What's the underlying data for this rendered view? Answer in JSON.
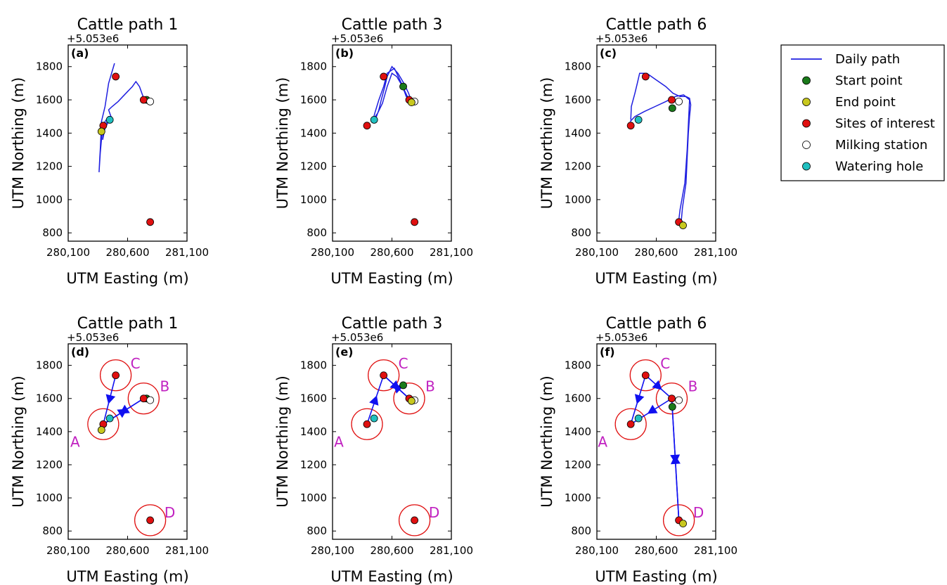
{
  "colors": {
    "path": "#1f1fe0",
    "start": "#1a7a1a",
    "end": "#c8c81e",
    "site": "#e01010",
    "milking": "#ffffff",
    "water": "#20c0c0",
    "circle": "#e01010",
    "arrow": "#1010f0",
    "site_label": "#c020c0"
  },
  "legend": {
    "placement": "upper right, outside panels",
    "entries": [
      {
        "key": "path",
        "label": "Daily path"
      },
      {
        "key": "start",
        "label": "Start point"
      },
      {
        "key": "end",
        "label": "End point"
      },
      {
        "key": "site",
        "label": "Sites of interest"
      },
      {
        "key": "milking",
        "label": "Milking station"
      },
      {
        "key": "water",
        "label": "Watering hole"
      }
    ]
  },
  "chart_data": [
    {
      "type": "line",
      "panel": "a",
      "title": "Cattle path 1",
      "offset_label": "+5.053e6",
      "xlabel": "UTM Easting (m)",
      "ylabel": "UTM Northing (m)",
      "xlim": [
        280100,
        281100
      ],
      "ylim": [
        750,
        1930
      ],
      "xticks": [
        280100,
        280600,
        281100
      ],
      "xtick_labels": [
        "280,100",
        "280,600",
        "281,100"
      ],
      "yticks": [
        800,
        1000,
        1200,
        1400,
        1600,
        1800
      ],
      "ytick_labels": [
        "800",
        "1000",
        "1200",
        "1400",
        "1600",
        "1800"
      ],
      "path": [
        [
          280490,
          1820
        ],
        [
          280440,
          1700
        ],
        [
          280410,
          1560
        ],
        [
          280380,
          1470
        ],
        [
          280375,
          1380
        ],
        [
          280370,
          1300
        ],
        [
          280365,
          1240
        ],
        [
          280360,
          1165
        ],
        [
          280370,
          1280
        ],
        [
          280385,
          1400
        ],
        [
          280395,
          1440
        ],
        [
          280410,
          1470
        ],
        [
          280440,
          1500
        ],
        [
          280460,
          1500
        ],
        [
          280440,
          1470
        ],
        [
          280410,
          1430
        ],
        [
          280390,
          1360
        ],
        [
          280400,
          1420
        ],
        [
          280420,
          1460
        ],
        [
          280460,
          1500
        ],
        [
          280440,
          1540
        ],
        [
          280470,
          1560
        ],
        [
          280520,
          1590
        ],
        [
          280560,
          1620
        ],
        [
          280600,
          1650
        ],
        [
          280640,
          1680
        ],
        [
          280670,
          1710
        ],
        [
          280700,
          1680
        ],
        [
          280720,
          1640
        ],
        [
          280740,
          1600
        ],
        [
          280760,
          1590
        ]
      ],
      "start": [
        280760,
        1600
      ],
      "end": [
        280380,
        1410
      ],
      "sites": [
        [
          280500,
          1740
        ],
        [
          280735,
          1600
        ],
        [
          280395,
          1445
        ],
        [
          280790,
          865
        ]
      ],
      "milking": [
        280790,
        1590
      ],
      "water": [
        280450,
        1480
      ]
    },
    {
      "type": "line",
      "panel": "b",
      "title": "Cattle path 3",
      "offset_label": "+5.053e6",
      "xlabel": "UTM Easting (m)",
      "ylabel": "UTM Northing (m)",
      "xlim": [
        280100,
        281100
      ],
      "ylim": [
        750,
        1930
      ],
      "xticks": [
        280100,
        280600,
        281100
      ],
      "xtick_labels": [
        "280,100",
        "280,600",
        "281,100"
      ],
      "yticks": [
        800,
        1000,
        1200,
        1400,
        1600,
        1800
      ],
      "ytick_labels": [
        "800",
        "1000",
        "1200",
        "1400",
        "1600",
        "1800"
      ],
      "path": [
        [
          280460,
          1480
        ],
        [
          280490,
          1540
        ],
        [
          280510,
          1600
        ],
        [
          280540,
          1680
        ],
        [
          280560,
          1740
        ],
        [
          280600,
          1800
        ],
        [
          280650,
          1760
        ],
        [
          280700,
          1700
        ],
        [
          280740,
          1640
        ],
        [
          280760,
          1600
        ],
        [
          280720,
          1620
        ],
        [
          280680,
          1700
        ],
        [
          280620,
          1790
        ],
        [
          280560,
          1760
        ],
        [
          280530,
          1680
        ],
        [
          280490,
          1600
        ],
        [
          280460,
          1530
        ],
        [
          280440,
          1480
        ],
        [
          280480,
          1520
        ],
        [
          280520,
          1580
        ],
        [
          280560,
          1680
        ],
        [
          280600,
          1760
        ],
        [
          280640,
          1740
        ],
        [
          280690,
          1680
        ],
        [
          280730,
          1620
        ]
      ],
      "start": [
        280695,
        1680
      ],
      "end": [
        280765,
        1585
      ],
      "sites": [
        [
          280530,
          1740
        ],
        [
          280745,
          1600
        ],
        [
          280390,
          1445
        ],
        [
          280790,
          865
        ]
      ],
      "milking": [
        280790,
        1590
      ],
      "water": [
        280450,
        1480
      ]
    },
    {
      "type": "line",
      "panel": "c",
      "title": "Cattle path 6",
      "offset_label": "+5.053e6",
      "xlabel": "UTM Easting (m)",
      "ylabel": "UTM Northing (m)",
      "xlim": [
        280100,
        281100
      ],
      "ylim": [
        750,
        1930
      ],
      "xticks": [
        280100,
        280600,
        281100
      ],
      "xtick_labels": [
        "280,100",
        "280,600",
        "281,100"
      ],
      "yticks": [
        800,
        1000,
        1200,
        1400,
        1600,
        1800
      ],
      "ytick_labels": [
        "800",
        "1000",
        "1200",
        "1400",
        "1600",
        "1800"
      ],
      "path": [
        [
          280385,
          1480
        ],
        [
          280390,
          1560
        ],
        [
          280420,
          1640
        ],
        [
          280440,
          1700
        ],
        [
          280460,
          1760
        ],
        [
          280520,
          1760
        ],
        [
          280600,
          1720
        ],
        [
          280680,
          1680
        ],
        [
          280740,
          1640
        ],
        [
          280800,
          1620
        ],
        [
          280850,
          1620
        ],
        [
          280880,
          1610
        ],
        [
          280890,
          1570
        ],
        [
          280880,
          1500
        ],
        [
          280870,
          1400
        ],
        [
          280860,
          1250
        ],
        [
          280850,
          1100
        ],
        [
          280820,
          950
        ],
        [
          280810,
          870
        ],
        [
          280790,
          880
        ],
        [
          280800,
          940
        ],
        [
          280840,
          1100
        ],
        [
          280860,
          1300
        ],
        [
          280870,
          1450
        ],
        [
          280880,
          1600
        ],
        [
          280830,
          1630
        ],
        [
          280760,
          1620
        ],
        [
          280680,
          1590
        ],
        [
          280590,
          1560
        ],
        [
          280500,
          1530
        ],
        [
          280420,
          1500
        ],
        [
          280380,
          1470
        ]
      ],
      "start": [
        280735,
        1550
      ],
      "end": [
        280825,
        845
      ],
      "sites": [
        [
          280510,
          1740
        ],
        [
          280730,
          1600
        ],
        [
          280385,
          1445
        ],
        [
          280790,
          865
        ]
      ],
      "milking": [
        280790,
        1590
      ],
      "water": [
        280450,
        1480
      ]
    },
    {
      "type": "scatter",
      "panel": "d",
      "title": "Cattle path 1",
      "offset_label": "+5.053e6",
      "xlabel": "UTM Easting (m)",
      "ylabel": "UTM Northing (m)",
      "xlim": [
        280100,
        281100
      ],
      "ylim": [
        750,
        1930
      ],
      "xticks": [
        280100,
        280600,
        281100
      ],
      "xtick_labels": [
        "280,100",
        "280,600",
        "281,100"
      ],
      "yticks": [
        800,
        1000,
        1200,
        1400,
        1600,
        1800
      ],
      "ytick_labels": [
        "800",
        "1000",
        "1200",
        "1400",
        "1600",
        "1800"
      ],
      "start": [
        280760,
        1600
      ],
      "end": [
        280380,
        1410
      ],
      "sites": [
        [
          280500,
          1740
        ],
        [
          280735,
          1600
        ],
        [
          280395,
          1445
        ],
        [
          280790,
          865
        ]
      ],
      "milking": [
        280790,
        1590
      ],
      "water": [
        280450,
        1480
      ],
      "site_labels": [
        "C",
        "B",
        "A",
        "D"
      ],
      "transitions": [
        [
          1,
          2
        ],
        [
          0,
          2
        ],
        [
          2,
          1
        ]
      ]
    },
    {
      "type": "scatter",
      "panel": "e",
      "title": "Cattle path 3",
      "offset_label": "+5.053e6",
      "xlabel": "UTM Easting (m)",
      "ylabel": "UTM Northing (m)",
      "xlim": [
        280100,
        281100
      ],
      "ylim": [
        750,
        1930
      ],
      "xticks": [
        280100,
        280600,
        281100
      ],
      "xtick_labels": [
        "280,100",
        "280,600",
        "281,100"
      ],
      "yticks": [
        800,
        1000,
        1200,
        1400,
        1600,
        1800
      ],
      "ytick_labels": [
        "800",
        "1000",
        "1200",
        "1400",
        "1600",
        "1800"
      ],
      "start": [
        280695,
        1680
      ],
      "end": [
        280765,
        1585
      ],
      "sites": [
        [
          280530,
          1740
        ],
        [
          280745,
          1600
        ],
        [
          280390,
          1445
        ],
        [
          280790,
          865
        ]
      ],
      "milking": [
        280790,
        1590
      ],
      "water": [
        280450,
        1480
      ],
      "site_labels": [
        "C",
        "B",
        "A",
        "D"
      ],
      "transitions": [
        [
          2,
          0
        ],
        [
          0,
          1
        ],
        [
          1,
          0
        ]
      ]
    },
    {
      "type": "scatter",
      "panel": "f",
      "title": "Cattle path 6",
      "offset_label": "+5.053e6",
      "xlabel": "UTM Easting (m)",
      "ylabel": "UTM Northing (m)",
      "xlim": [
        280100,
        281100
      ],
      "ylim": [
        750,
        1930
      ],
      "xticks": [
        280100,
        280600,
        281100
      ],
      "xtick_labels": [
        "280,100",
        "280,600",
        "281,100"
      ],
      "yticks": [
        800,
        1000,
        1200,
        1400,
        1600,
        1800
      ],
      "ytick_labels": [
        "800",
        "1000",
        "1200",
        "1400",
        "1600",
        "1800"
      ],
      "start": [
        280735,
        1550
      ],
      "end": [
        280825,
        845
      ],
      "sites": [
        [
          280510,
          1740
        ],
        [
          280730,
          1600
        ],
        [
          280385,
          1445
        ],
        [
          280790,
          865
        ]
      ],
      "milking": [
        280790,
        1590
      ],
      "water": [
        280450,
        1480
      ],
      "site_labels": [
        "C",
        "B",
        "A",
        "D"
      ],
      "transitions": [
        [
          0,
          2
        ],
        [
          0,
          1
        ],
        [
          1,
          2
        ],
        [
          1,
          3
        ],
        [
          3,
          1
        ]
      ]
    }
  ]
}
